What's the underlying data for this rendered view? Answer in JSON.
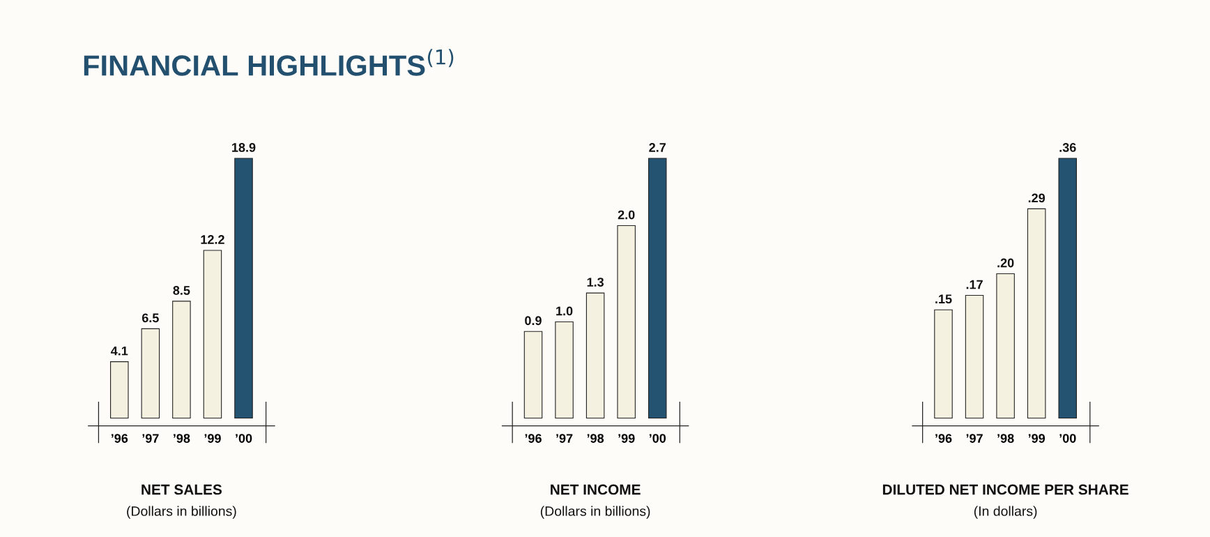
{
  "chart_data": [
    {
      "type": "bar",
      "title": "FINANCIAL HIGHLIGHTS$^{(1)}$",
      "xlabel": "NET SALES",
      "annotations": [
        "(Dollars in billions)"
      ],
      "categories": [
        "’96",
        "’97",
        "’98",
        "’99",
        "’00"
      ],
      "values": [
        4.1,
        6.5,
        8.5,
        12.2,
        18.9
      ],
      "colors": [
        "#f5f1e1",
        "#f5f1e1",
        "#f5f1e1",
        "#f5f1e1",
        "#235370"
      ],
      "value_labels": [
        "4.1",
        "6.5",
        "8.5",
        "12.2",
        "18.9"
      ]
    },
    {
      "type": "bar",
      "xlabel": "NET INCOME",
      "annotations": [
        "(Dollars in billions)"
      ],
      "categories": [
        "’96",
        "’97",
        "’98",
        "’99",
        "’00"
      ],
      "values": [
        0.9,
        1.0,
        1.3,
        2.0,
        2.7
      ],
      "colors": [
        "#f5f1e1",
        "#f5f1e1",
        "#f5f1e1",
        "#f5f1e1",
        "#235370"
      ],
      "value_labels": [
        "0.9",
        "1.0",
        "1.3",
        "2.0",
        "2.7"
      ]
    },
    {
      "type": "bar",
      "xlabel": "DILUTED NET INCOME PER SHARE",
      "annotations": [
        "(In dollars)"
      ],
      "categories": [
        "’96",
        "’97",
        "’98",
        "’99",
        "’00"
      ],
      "values": [
        0.15,
        0.17,
        0.2,
        0.29,
        0.36
      ],
      "colors": [
        "#f5f1e1",
        "#f5f1e1",
        "#f5f1e1",
        "#f5f1e1",
        "#235370"
      ],
      "value_labels": [
        ".15",
        ".17",
        ".20",
        ".29",
        ".36"
      ]
    }
  ]
}
